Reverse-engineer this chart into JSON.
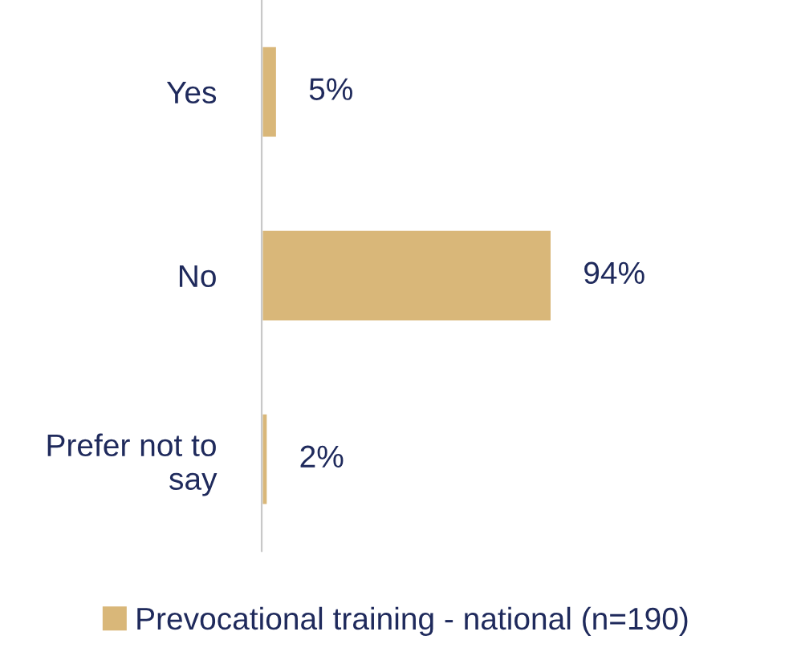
{
  "chart_data": {
    "type": "bar",
    "orientation": "horizontal",
    "categories": [
      "Yes",
      "No",
      "Prefer not to\nsay"
    ],
    "series": [
      {
        "name": "Prevocational training - national (n=190)",
        "color": "#d9b779",
        "values": [
          5,
          94,
          2
        ],
        "value_labels": [
          "5%",
          "94%",
          "2%"
        ]
      }
    ],
    "legend": "bottom",
    "grid": false
  }
}
